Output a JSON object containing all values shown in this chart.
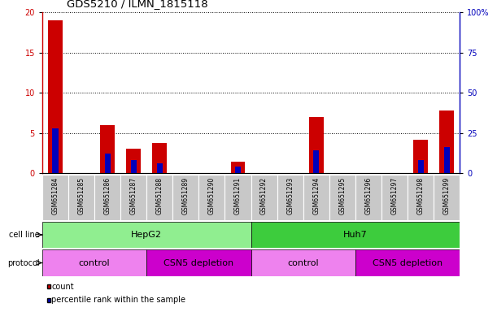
{
  "title": "GDS5210 / ILMN_1815118",
  "samples": [
    "GSM651284",
    "GSM651285",
    "GSM651286",
    "GSM651287",
    "GSM651288",
    "GSM651289",
    "GSM651290",
    "GSM651291",
    "GSM651292",
    "GSM651293",
    "GSM651294",
    "GSM651295",
    "GSM651296",
    "GSM651297",
    "GSM651298",
    "GSM651299"
  ],
  "count_values": [
    19,
    0,
    6,
    3,
    3.8,
    0,
    0,
    1.4,
    0,
    0,
    7,
    0,
    0,
    0,
    4.2,
    7.8
  ],
  "percentile_values": [
    28,
    0,
    12,
    8,
    6,
    0,
    0,
    4,
    0,
    0,
    14,
    0,
    0,
    0,
    8,
    16
  ],
  "ylim_left": [
    0,
    20
  ],
  "ylim_right": [
    0,
    100
  ],
  "yticks_left": [
    0,
    5,
    10,
    15,
    20
  ],
  "yticks_right": [
    0,
    25,
    50,
    75,
    100
  ],
  "ytick_labels_right": [
    "0",
    "25",
    "50",
    "75",
    "100%"
  ],
  "cell_line_groups": [
    {
      "label": "HepG2",
      "start": 0,
      "end": 8,
      "color": "#90EE90"
    },
    {
      "label": "Huh7",
      "start": 8,
      "end": 16,
      "color": "#3DCC3D"
    }
  ],
  "protocol_groups": [
    {
      "label": "control",
      "start": 0,
      "end": 4,
      "color": "#EE82EE"
    },
    {
      "label": "CSN5 depletion",
      "start": 4,
      "end": 8,
      "color": "#CC00CC"
    },
    {
      "label": "control",
      "start": 8,
      "end": 12,
      "color": "#EE82EE"
    },
    {
      "label": "CSN5 depletion",
      "start": 12,
      "end": 16,
      "color": "#CC00CC"
    }
  ],
  "bar_color_count": "#CC0000",
  "bar_color_percentile": "#0000BB",
  "bg_color": "#FFFFFF",
  "tick_area_bg": "#C8C8C8",
  "legend_count_label": "count",
  "legend_percentile_label": "percentile rank within the sample",
  "cell_line_label": "cell line",
  "protocol_label": "protocol"
}
